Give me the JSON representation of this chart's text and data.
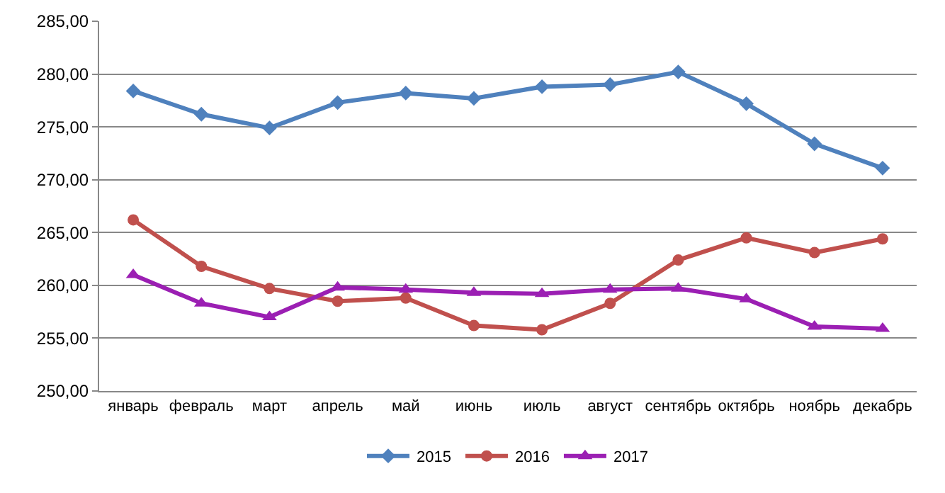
{
  "chart_data": {
    "type": "line",
    "categories": [
      "январь",
      "февраль",
      "март",
      "апрель",
      "май",
      "июнь",
      "июль",
      "август",
      "сентябрь",
      "октябрь",
      "ноябрь",
      "декабрь"
    ],
    "series": [
      {
        "name": "2015",
        "color": "#4f81bd",
        "marker": "diamond",
        "values": [
          278.4,
          276.2,
          274.9,
          277.3,
          278.2,
          277.7,
          278.8,
          279.0,
          280.2,
          277.2,
          273.4,
          271.1
        ]
      },
      {
        "name": "2016",
        "color": "#c0504d",
        "marker": "circle",
        "values": [
          266.2,
          261.8,
          259.7,
          258.5,
          258.8,
          256.2,
          255.8,
          258.3,
          262.4,
          264.5,
          263.1,
          264.4
        ]
      },
      {
        "name": "2017",
        "color": "#9b1fb3",
        "marker": "triangle",
        "values": [
          261.0,
          258.3,
          257.0,
          259.8,
          259.6,
          259.3,
          259.2,
          259.6,
          259.7,
          258.7,
          256.1,
          255.9
        ]
      }
    ],
    "ylim": [
      250,
      285
    ],
    "yticks": [
      {
        "value": 250,
        "label": "250,00"
      },
      {
        "value": 255,
        "label": "255,00"
      },
      {
        "value": 260,
        "label": "260,00"
      },
      {
        "value": 265,
        "label": "265,00"
      },
      {
        "value": 270,
        "label": "270,00"
      },
      {
        "value": 275,
        "label": "275,00"
      },
      {
        "value": 280,
        "label": "280,00"
      },
      {
        "value": 285,
        "label": "285,00"
      }
    ],
    "grid": "y",
    "legend": "bottom",
    "line_style": "solid"
  }
}
